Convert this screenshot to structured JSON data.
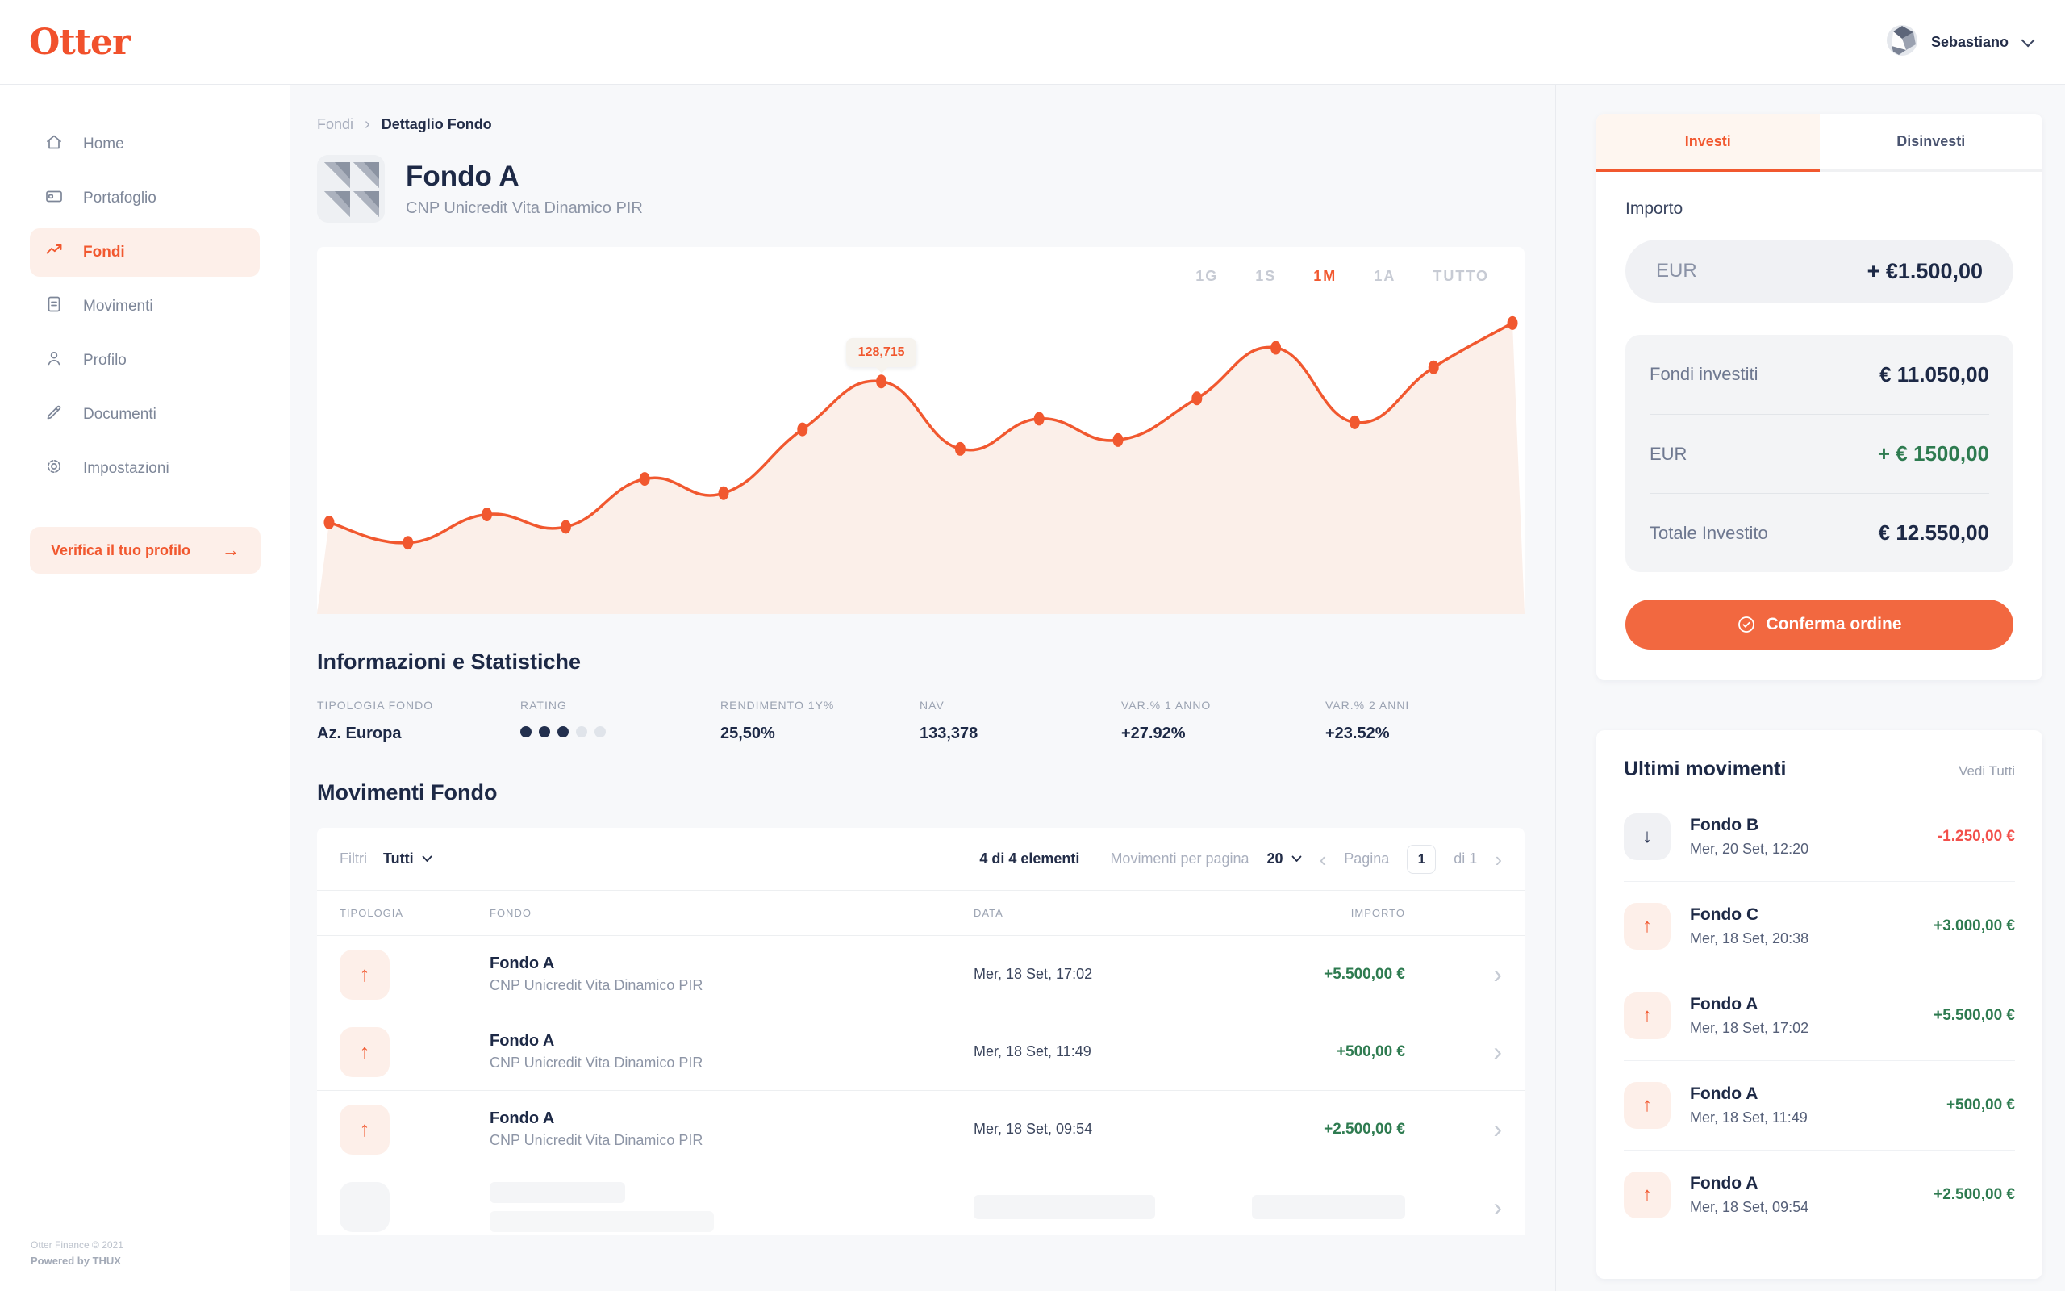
{
  "theme": {
    "accent": "#F1582F",
    "accent_light": "#FDEFE9",
    "navy": "#1D2946",
    "positive": "#2E7B50",
    "negative": "#F2504B",
    "muted_text": "#8D95A6",
    "page_bg": "#F7F8FA"
  },
  "header": {
    "logo": "Otter",
    "user_name": "Sebastiano"
  },
  "sidebar": {
    "items": [
      {
        "label": "Home",
        "icon": "home-icon",
        "active": false
      },
      {
        "label": "Portafoglio",
        "icon": "wallet-icon",
        "active": false
      },
      {
        "label": "Fondi",
        "icon": "trending-up-icon",
        "active": true
      },
      {
        "label": "Movimenti",
        "icon": "document-icon",
        "active": false
      },
      {
        "label": "Profilo",
        "icon": "user-icon",
        "active": false
      },
      {
        "label": "Documenti",
        "icon": "pencil-icon",
        "active": false
      },
      {
        "label": "Impostazioni",
        "icon": "gear-icon",
        "active": false
      }
    ],
    "verify_profile_label": "Verifica il tuo profilo",
    "footer": {
      "line1": "Otter Finance © 2021",
      "line2": "Powered by THUX"
    }
  },
  "breadcrumb": {
    "parent": "Fondi",
    "current": "Dettaglio Fondo"
  },
  "fund_header": {
    "name": "Fondo A",
    "subtitle": "CNP Unicredit Vita Dinamico PIR"
  },
  "chart": {
    "ranges": [
      {
        "label": "1G",
        "active": false
      },
      {
        "label": "1S",
        "active": false
      },
      {
        "label": "1M",
        "active": true
      },
      {
        "label": "1A",
        "active": false
      },
      {
        "label": "TUTTO",
        "active": false
      }
    ]
  },
  "chart_data": {
    "type": "line",
    "title": "Andamento Fondo A (1M)",
    "values": [
      124020,
      123345,
      124290,
      123875,
      125470,
      124995,
      127120,
      128715,
      126470,
      127475,
      126765,
      128150,
      129835,
      127355,
      129185,
      130660
    ],
    "tooltip_index": 7,
    "tooltip_label": "128,715",
    "ylim": [
      122500,
      132500
    ],
    "grid": false,
    "legend": false,
    "line_color": "#F1582F",
    "fill_color": "#FBEFE9"
  },
  "stats": {
    "title": "Informazioni e Statistiche",
    "items": [
      {
        "label": "TIPOLOGIA FONDO",
        "value": "Az. Europa"
      },
      {
        "label": "RATING",
        "rating": 3,
        "rating_max": 5
      },
      {
        "label": "RENDIMENTO 1Y%",
        "value": "25,50%"
      },
      {
        "label": "NAV",
        "value": "133,378"
      },
      {
        "label": "VAR.% 1 ANNO",
        "value": "+27.92%"
      },
      {
        "label": "VAR.% 2 ANNI",
        "value": "+23.52%"
      }
    ]
  },
  "movements": {
    "title": "Movimenti Fondo",
    "toolbar": {
      "filters_label": "Filtri",
      "filter_value": "Tutti",
      "count": "4 di 4 elementi",
      "per_page_label": "Movimenti per pagina",
      "per_page_value": "20",
      "page_label": "Pagina",
      "page_value": "1",
      "page_of": "di 1"
    },
    "columns": [
      "TIPOLOGIA",
      "FONDO",
      "DATA",
      "IMPORTO"
    ],
    "rows": [
      {
        "direction": "up",
        "fund": "Fondo A",
        "subtitle": "CNP Unicredit Vita Dinamico PIR",
        "date": "Mer, 18 Set, 17:02",
        "amount": "+5.500,00 €"
      },
      {
        "direction": "up",
        "fund": "Fondo A",
        "subtitle": "CNP Unicredit Vita Dinamico PIR",
        "date": "Mer, 18 Set, 11:49",
        "amount": "+500,00 €"
      },
      {
        "direction": "up",
        "fund": "Fondo A",
        "subtitle": "CNP Unicredit Vita Dinamico PIR",
        "date": "Mer, 18 Set, 09:54",
        "amount": "+2.500,00 €"
      }
    ],
    "loading_row": true
  },
  "invest_panel": {
    "tabs": [
      {
        "label": "Investi",
        "active": true
      },
      {
        "label": "Disinvesti",
        "active": false
      }
    ],
    "amount_label": "Importo",
    "input": {
      "currency": "EUR",
      "value": "+ €1.500,00"
    },
    "summary": [
      {
        "label": "Fondi investiti",
        "value": "€ 11.050,00",
        "tone": "navy"
      },
      {
        "label": "EUR",
        "value": "+ € 1500,00",
        "tone": "green"
      },
      {
        "label": "Totale Investito",
        "value": "€ 12.550,00",
        "tone": "navy"
      }
    ],
    "confirm_label": "Conferma ordine"
  },
  "recent": {
    "title": "Ultimi movimenti",
    "see_all": "Vedi Tutti",
    "items": [
      {
        "fund": "Fondo B",
        "date": "Mer, 20 Set, 12:20",
        "amount": "-1.250,00 €",
        "direction": "down",
        "tone": "negative"
      },
      {
        "fund": "Fondo C",
        "date": "Mer, 18 Set, 20:38",
        "amount": "+3.000,00 €",
        "direction": "up",
        "tone": "positive"
      },
      {
        "fund": "Fondo A",
        "date": "Mer, 18 Set, 17:02",
        "amount": "+5.500,00 €",
        "direction": "up",
        "tone": "positive"
      },
      {
        "fund": "Fondo A",
        "date": "Mer, 18 Set, 11:49",
        "amount": "+500,00 €",
        "direction": "up",
        "tone": "positive"
      },
      {
        "fund": "Fondo A",
        "date": "Mer, 18 Set, 09:54",
        "amount": "+2.500,00 €",
        "direction": "up",
        "tone": "positive"
      }
    ]
  }
}
